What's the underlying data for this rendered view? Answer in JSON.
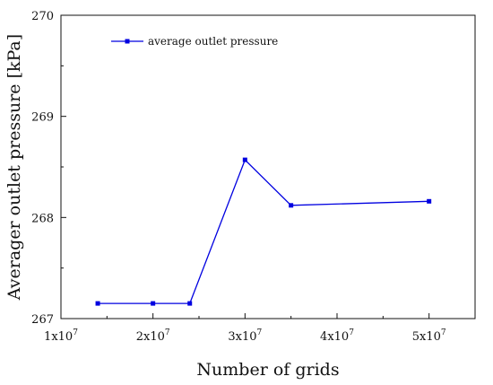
{
  "chart_data": {
    "type": "line",
    "title": "",
    "xlabel": "Number of grids",
    "ylabel": "Averager outlet pressure [kPa]",
    "xlim": [
      10000000,
      55000000
    ],
    "ylim": [
      267,
      270
    ],
    "x_ticks": [
      {
        "value": 10000000,
        "label": "1x10",
        "exp": "7"
      },
      {
        "value": 20000000,
        "label": "2x10",
        "exp": "7"
      },
      {
        "value": 30000000,
        "label": "3x10",
        "exp": "7"
      },
      {
        "value": 40000000,
        "label": "4x10",
        "exp": "7"
      },
      {
        "value": 50000000,
        "label": "5x10",
        "exp": "7"
      }
    ],
    "y_ticks": [
      {
        "value": 267,
        "label": "267"
      },
      {
        "value": 268,
        "label": "268"
      },
      {
        "value": 269,
        "label": "269"
      },
      {
        "value": 270,
        "label": "270"
      }
    ],
    "series": [
      {
        "name": "average outlet pressure",
        "color": "#0000e0",
        "marker": "square",
        "x": [
          14000000,
          20000000,
          24000000,
          30000000,
          35000000,
          50000000
        ],
        "y": [
          267.15,
          267.15,
          267.15,
          268.57,
          268.12,
          268.16
        ]
      }
    ],
    "legend_position": "top-left",
    "grid": false
  }
}
